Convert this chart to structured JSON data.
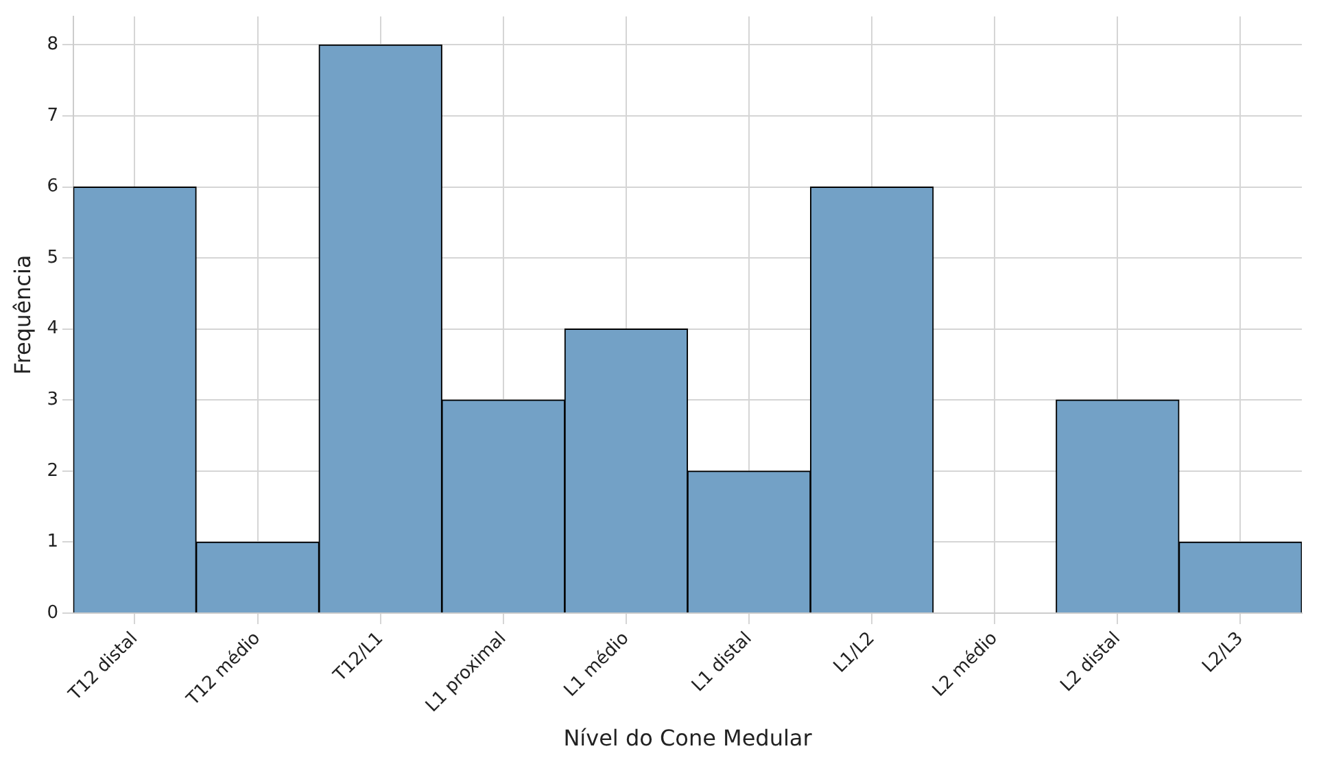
{
  "chart_data": {
    "type": "bar",
    "xlabel": "Nível do Cone Medular",
    "ylabel": "Frequência",
    "categories": [
      "T12 distal",
      "T12 médio",
      "T12/L1",
      "L1 proximal",
      "L1 médio",
      "L1 distal",
      "L1/L2",
      "L2 médio",
      "L2 distal",
      "L2/L3"
    ],
    "values": [
      6,
      1,
      8,
      3,
      4,
      2,
      6,
      0,
      3,
      1
    ],
    "color": "#73a1c6",
    "ylim": [
      0,
      8.4
    ],
    "yticks": [
      0,
      1,
      2,
      3,
      4,
      5,
      6,
      7,
      8
    ],
    "grid": true,
    "legend": false
  }
}
